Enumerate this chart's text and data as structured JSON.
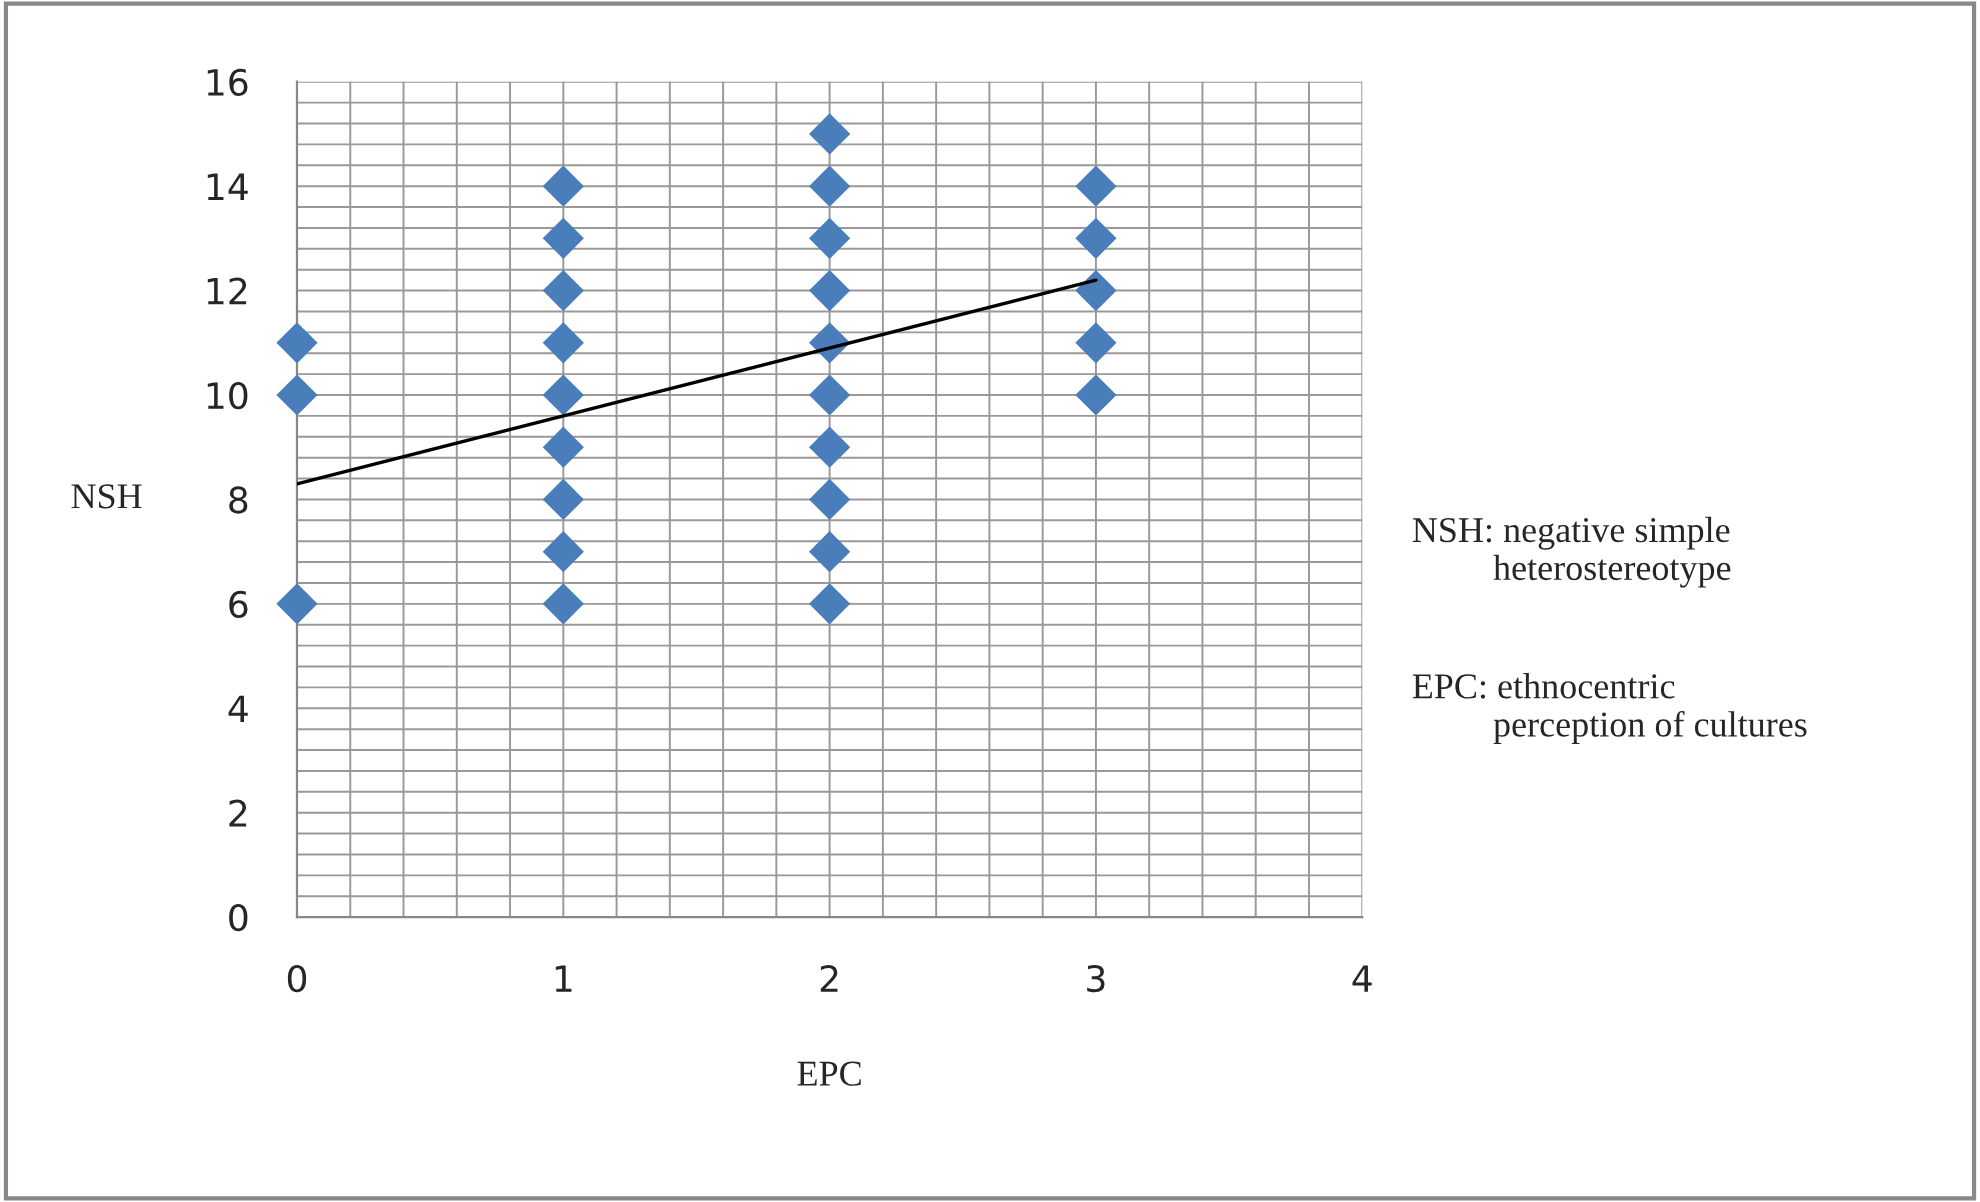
{
  "chart_data": {
    "type": "scatter",
    "xlabel": "EPC",
    "ylabel": "NSH",
    "grid": true,
    "legend": false,
    "xlim": [
      0,
      4
    ],
    "xticks": [
      0,
      1,
      2,
      3,
      4
    ],
    "ylim": [
      0,
      16
    ],
    "yticks": [
      0,
      2,
      4,
      6,
      8,
      10,
      12,
      14,
      16
    ],
    "series": [
      {
        "marker": "diamond",
        "color": "#4a7ebb",
        "x": [
          0,
          0,
          0,
          1,
          1,
          1,
          1,
          1,
          1,
          1,
          1,
          1,
          2,
          2,
          2,
          2,
          2,
          2,
          2,
          2,
          2,
          2,
          3,
          3,
          3,
          3,
          3
        ],
        "values": [
          6,
          10,
          11,
          6,
          7,
          8,
          9,
          10,
          11,
          12,
          13,
          14,
          6,
          7,
          8,
          9,
          10,
          11,
          12,
          13,
          14,
          15,
          10,
          11,
          12,
          13,
          14
        ]
      },
      {
        "type": "line",
        "marker": "none",
        "color": "#000000",
        "x": [
          0,
          3
        ],
        "values": [
          8.3,
          12.2
        ]
      }
    ],
    "annotations": [
      "NSH: negative simple\n         heterostereotype",
      "EPC: ethnocentric\n         perception of cultures"
    ]
  }
}
